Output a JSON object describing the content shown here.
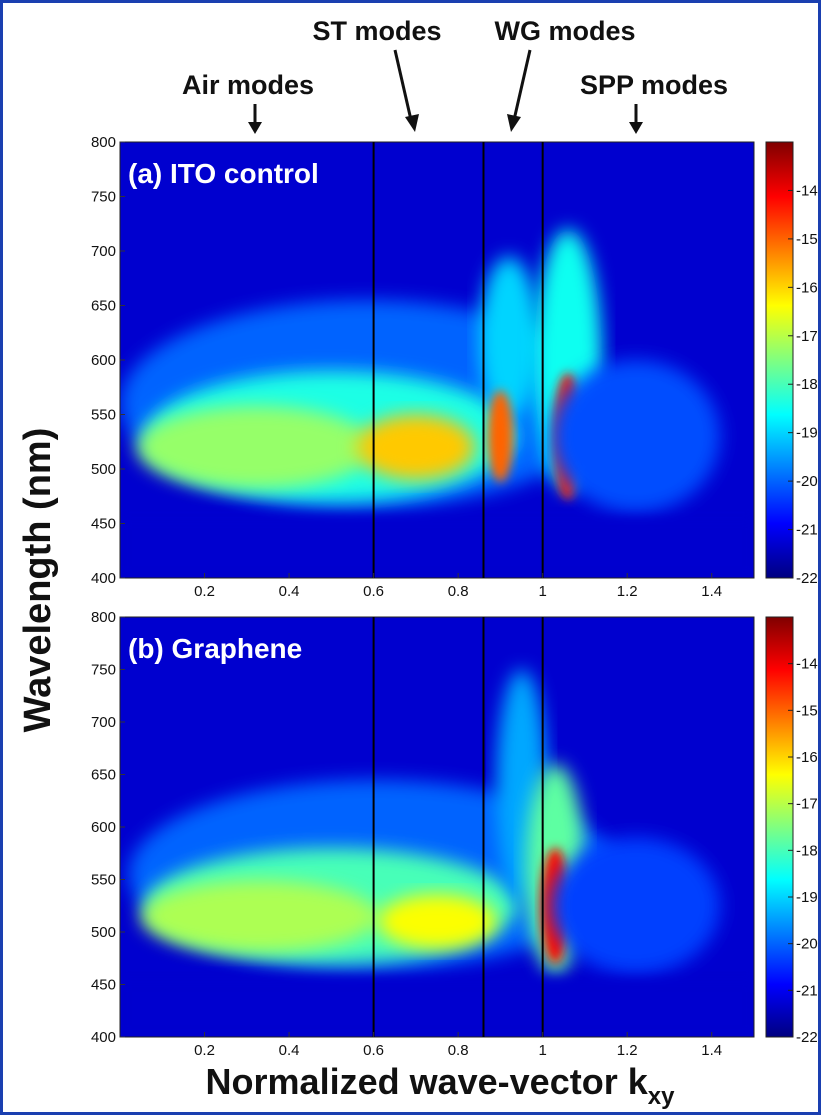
{
  "chart_data": [
    {
      "type": "heatmap",
      "panel_label": "(a) ITO control",
      "xlabel": "Normalized wave-vector k",
      "xlabel_subscript": "xy",
      "ylabel": "Wavelength (nm)",
      "xlim": [
        0,
        1.5
      ],
      "ylim": [
        400,
        800
      ],
      "x_ticks": [
        0.2,
        0.4,
        0.6,
        0.8,
        1.0,
        1.2,
        1.4
      ],
      "x_tick_labels": [
        "0.2",
        "0.4",
        "0.6",
        "0.8",
        "1",
        "1.2",
        "1.4"
      ],
      "y_ticks": [
        400,
        450,
        500,
        550,
        600,
        650,
        700,
        750,
        800
      ],
      "y_tick_labels": [
        "400",
        "450",
        "500",
        "550",
        "600",
        "650",
        "700",
        "750",
        "800"
      ],
      "colorbar": {
        "range": [
          -22,
          -13
        ],
        "ticks": [
          -22,
          -21,
          -20,
          -19,
          -18,
          -17,
          -16,
          -15,
          -14
        ],
        "tick_labels": [
          "-22",
          "-21",
          "-20",
          "-19",
          "-18",
          "-17",
          "-16",
          "-15",
          "-14"
        ],
        "colormap": "jet"
      },
      "vertical_lines_x": [
        0.6,
        0.86,
        1.0
      ],
      "features": [
        {
          "x": 0.7,
          "y": 520,
          "value": -15.8
        },
        {
          "x": 0.9,
          "y": 530,
          "value": -15.0
        },
        {
          "x": 1.06,
          "y": 520,
          "value": -14.2
        },
        {
          "x": 0.3,
          "y": 520,
          "value": -17.3
        }
      ]
    },
    {
      "type": "heatmap",
      "panel_label": "(b) Graphene",
      "xlabel": "Normalized wave-vector k",
      "xlabel_subscript": "xy",
      "ylabel": "Wavelength (nm)",
      "xlim": [
        0,
        1.5
      ],
      "ylim": [
        400,
        800
      ],
      "x_ticks": [
        0.2,
        0.4,
        0.6,
        0.8,
        1.0,
        1.2,
        1.4
      ],
      "x_tick_labels": [
        "0.2",
        "0.4",
        "0.6",
        "0.8",
        "1",
        "1.2",
        "1.4"
      ],
      "y_ticks": [
        400,
        450,
        500,
        550,
        600,
        650,
        700,
        750,
        800
      ],
      "y_tick_labels": [
        "400",
        "450",
        "500",
        "550",
        "600",
        "650",
        "700",
        "750",
        "800"
      ],
      "colorbar": {
        "range": [
          -22,
          -13
        ],
        "ticks": [
          -22,
          -21,
          -20,
          -19,
          -18,
          -17,
          -16,
          -15,
          -14
        ],
        "tick_labels": [
          "-22",
          "-21",
          "-20",
          "-19",
          "-18",
          "-17",
          "-16",
          "-15",
          "-14"
        ],
        "colormap": "jet"
      },
      "vertical_lines_x": [
        0.6,
        0.86,
        1.0
      ],
      "features": [
        {
          "x": 0.75,
          "y": 510,
          "value": -16.3
        },
        {
          "x": 1.03,
          "y": 520,
          "value": -14.0
        },
        {
          "x": 0.3,
          "y": 515,
          "value": -17.1
        }
      ]
    }
  ],
  "mode_labels": [
    {
      "text": "Air modes",
      "x": 0.32
    },
    {
      "text": "ST modes",
      "x": 0.7
    },
    {
      "text": "WG modes",
      "x": 0.93
    },
    {
      "text": "SPP modes",
      "x": 1.23
    }
  ],
  "colors": {
    "frame": "#1a3fb0",
    "background_low": "#1b2f8f",
    "guide_lines": "#000000"
  }
}
